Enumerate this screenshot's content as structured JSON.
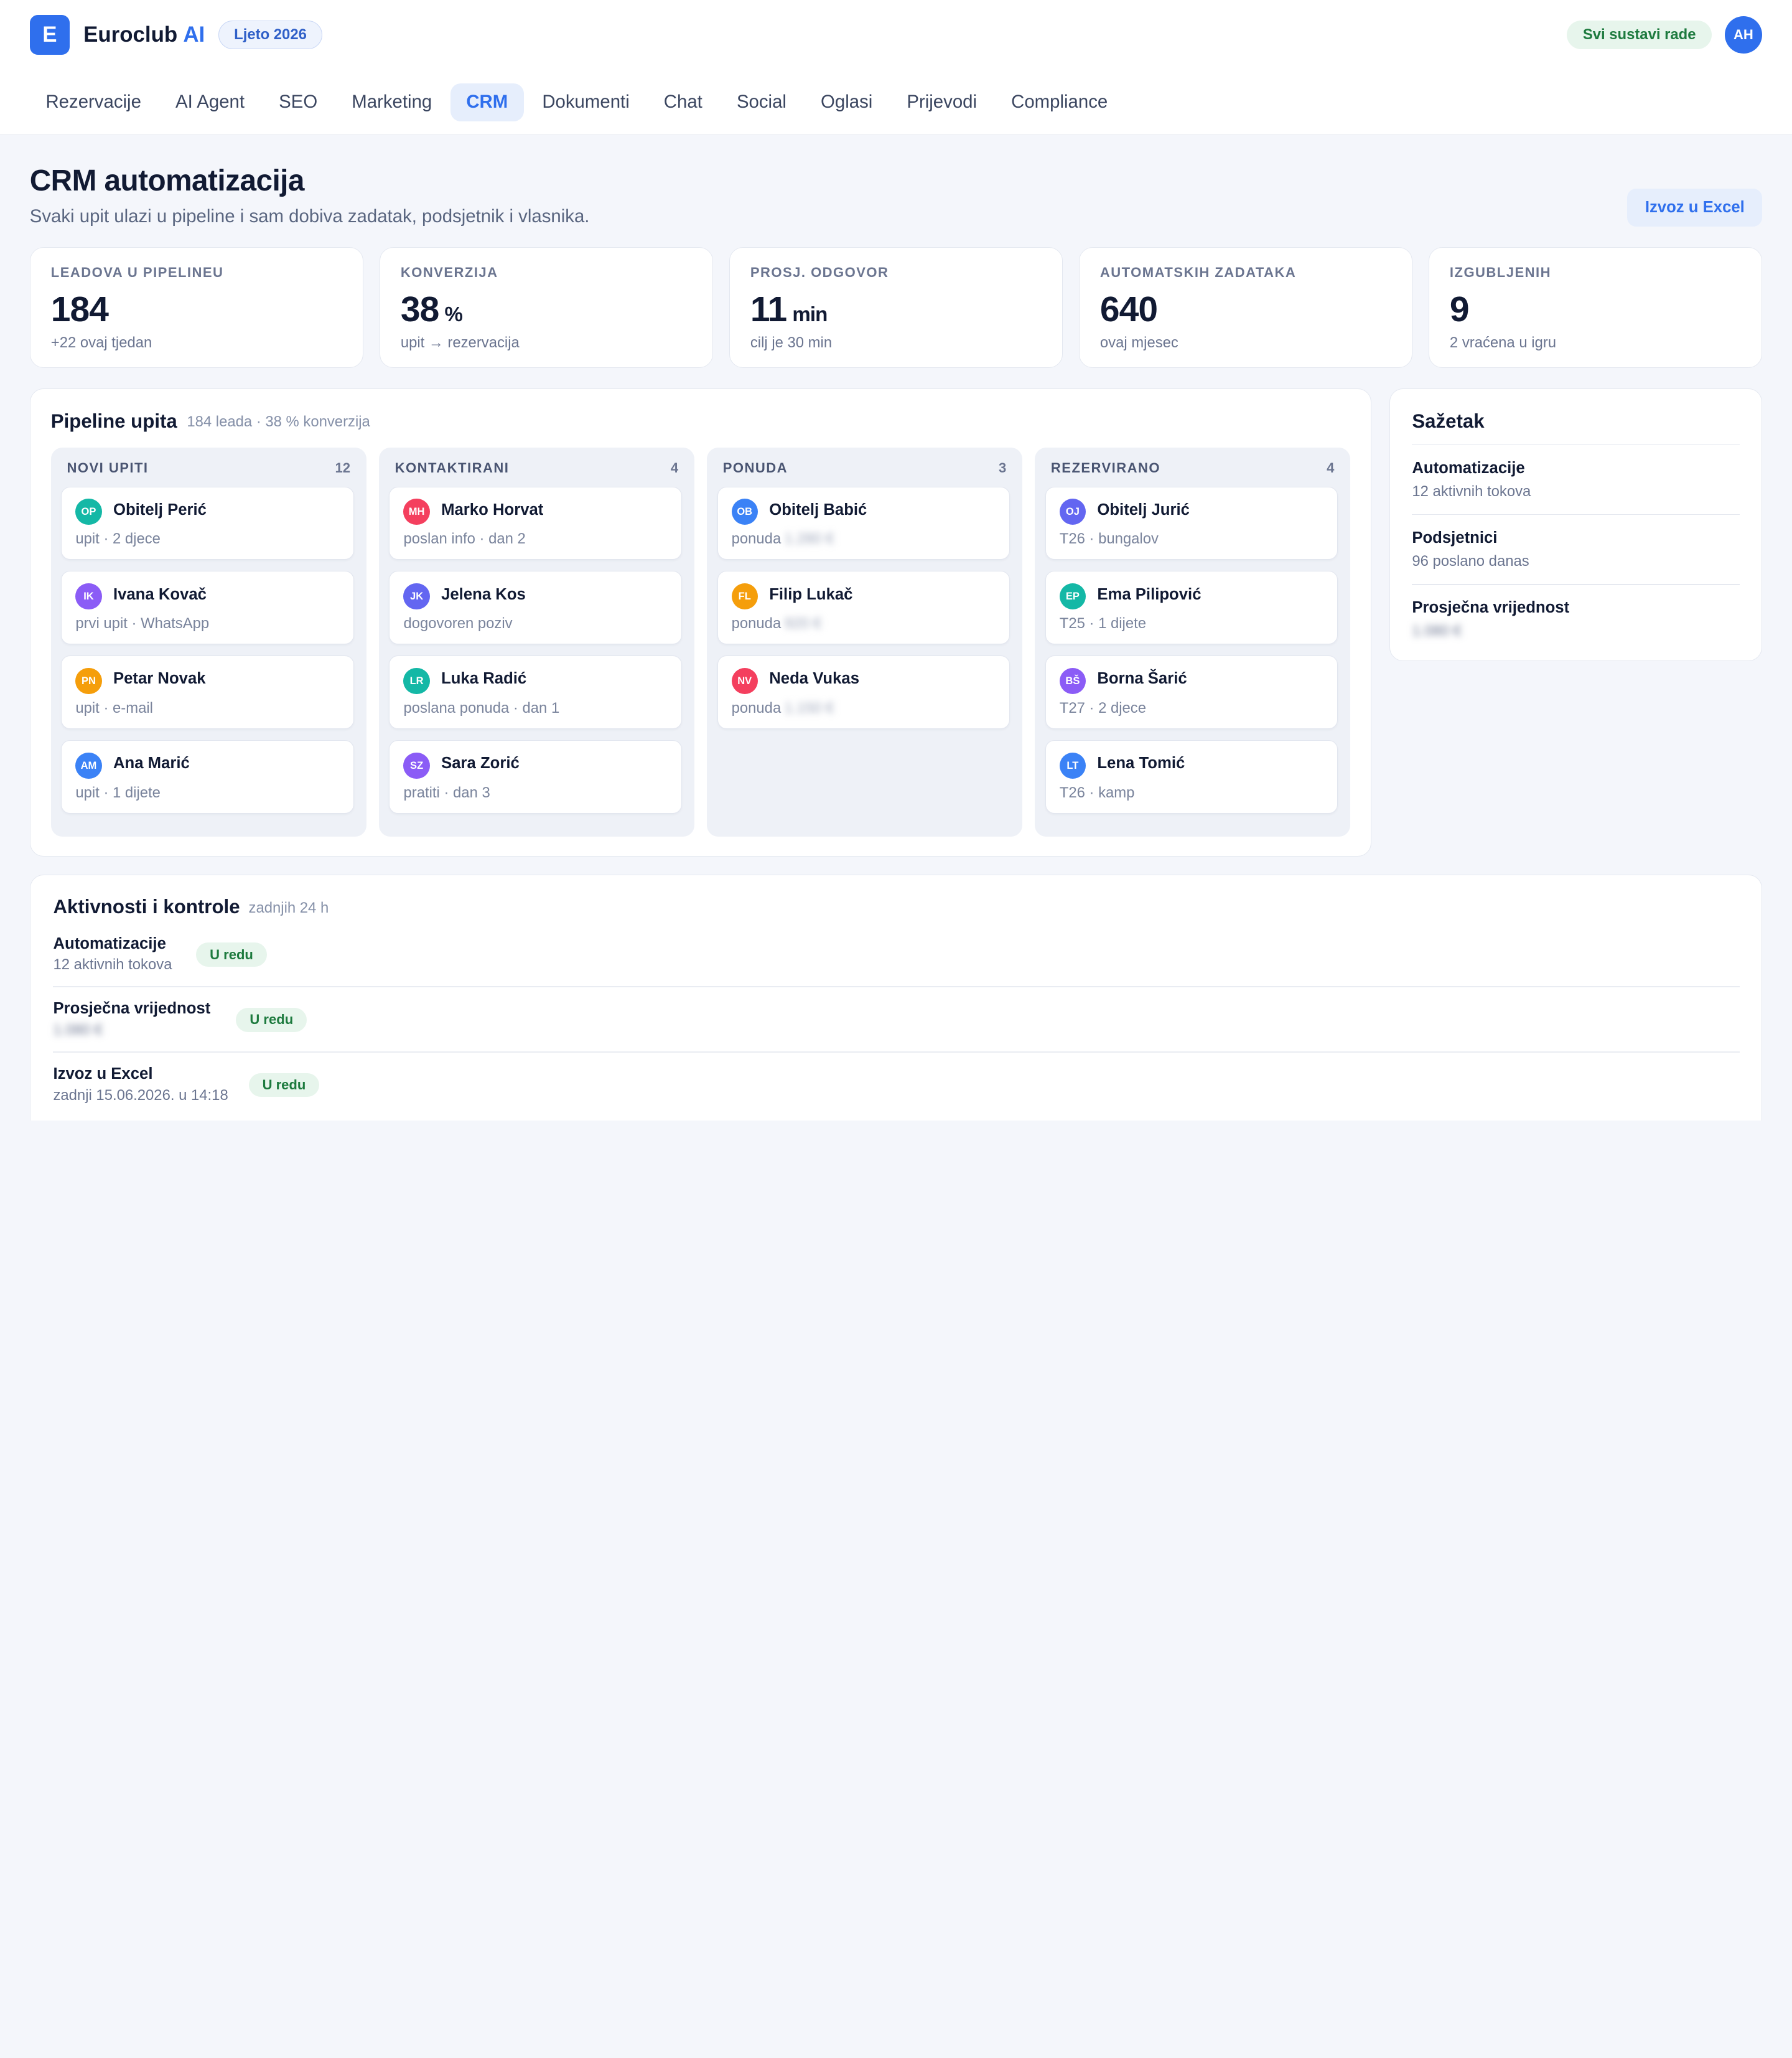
{
  "header": {
    "logo_letter": "E",
    "brand_name": "Euroclub",
    "brand_accent": "AI",
    "season": "Ljeto 2026",
    "status": "Svi sustavi rade",
    "user_initials": "AH"
  },
  "nav": {
    "tabs": [
      "Rezervacije",
      "AI Agent",
      "SEO",
      "Marketing",
      "CRM",
      "Dokumenti",
      "Chat",
      "Social",
      "Oglasi",
      "Prijevodi",
      "Compliance"
    ],
    "active": "CRM"
  },
  "page": {
    "title": "CRM automatizacija",
    "subtitle": "Svaki upit ulazi u pipeline i sam dobiva zadatak, podsjetnik i vlasnika.",
    "export_label": "Izvoz u Excel"
  },
  "stats": [
    {
      "label": "LEADOVA U PIPELINEU",
      "value": "184",
      "unit": "",
      "note": "+22 ovaj tjedan"
    },
    {
      "label": "KONVERZIJA",
      "value": "38",
      "unit": "%",
      "note": "upit → rezervacija"
    },
    {
      "label": "PROSJ. ODGOVOR",
      "value": "11",
      "unit": "min",
      "note": "cilj je 30 min"
    },
    {
      "label": "AUTOMATSKIH ZADATAKA",
      "value": "640",
      "unit": "",
      "note": "ovaj mjesec"
    },
    {
      "label": "IZGUBLJENIH",
      "value": "9",
      "unit": "",
      "note": "2 vraćena u igru"
    }
  ],
  "pipeline": {
    "title": "Pipeline upita",
    "meta": "184 leada · 38 % konverzija",
    "columns": [
      {
        "name": "NOVI UPITI",
        "count": "12",
        "cards": [
          {
            "initials": "OP",
            "name": "Obitelj Perić",
            "sub": "upit · 2 djece",
            "hidden": ""
          },
          {
            "initials": "IK",
            "name": "Ivana Kovač",
            "sub": "prvi upit · WhatsApp",
            "hidden": ""
          },
          {
            "initials": "PN",
            "name": "Petar Novak",
            "sub": "upit · e-mail",
            "hidden": ""
          },
          {
            "initials": "AM",
            "name": "Ana Marić",
            "sub": "upit · 1 dijete",
            "hidden": ""
          }
        ]
      },
      {
        "name": "KONTAKTIRANI",
        "count": "4",
        "cards": [
          {
            "initials": "MH",
            "name": "Marko Horvat",
            "sub": "poslan info · dan 2",
            "hidden": ""
          },
          {
            "initials": "JK",
            "name": "Jelena Kos",
            "sub": "dogovoren poziv",
            "hidden": ""
          },
          {
            "initials": "LR",
            "name": "Luka Radić",
            "sub": "poslana ponuda · dan 1",
            "hidden": ""
          },
          {
            "initials": "SZ",
            "name": "Sara Zorić",
            "sub": "pratiti · dan 3",
            "hidden": ""
          }
        ]
      },
      {
        "name": "PONUDA",
        "count": "3",
        "cards": [
          {
            "initials": "OB",
            "name": "Obitelj Babić",
            "sub": "ponuda",
            "hidden": "1.280 €"
          },
          {
            "initials": "FL",
            "name": "Filip Lukač",
            "sub": "ponuda",
            "hidden": "920 €"
          },
          {
            "initials": "NV",
            "name": "Neda Vukas",
            "sub": "ponuda",
            "hidden": "1.150 €"
          }
        ]
      },
      {
        "name": "REZERVIRANO",
        "count": "4",
        "cards": [
          {
            "initials": "OJ",
            "name": "Obitelj Jurić",
            "sub": "T26 · bungalov",
            "hidden": ""
          },
          {
            "initials": "EP",
            "name": "Ema Pilipović",
            "sub": "T25 · 1 dijete",
            "hidden": ""
          },
          {
            "initials": "BŠ",
            "name": "Borna Šarić",
            "sub": "T27 · 2 djece",
            "hidden": ""
          },
          {
            "initials": "LT",
            "name": "Lena Tomić",
            "sub": "T26 · kamp",
            "hidden": ""
          }
        ]
      }
    ]
  },
  "summary": {
    "title": "Sažetak",
    "items": [
      {
        "title": "Automatizacije",
        "sub": "12 aktivnih tokova",
        "hidden": false
      },
      {
        "title": "Podsjetnici",
        "sub": "96 poslano danas",
        "hidden": false
      },
      {
        "title": "Prosječna vrijednost",
        "sub": "1.080 €",
        "hidden": true
      }
    ]
  },
  "activity": {
    "title": "Aktivnosti i kontrole",
    "meta": "zadnjih 24 h",
    "rows": [
      {
        "title": "Automatizacije",
        "sub": "12 aktivnih tokova",
        "badge": "U redu",
        "hidden": false
      },
      {
        "title": "Prosječna vrijednost",
        "sub": "1.080 €",
        "badge": "U redu",
        "hidden": true
      },
      {
        "title": "Izvoz u Excel",
        "sub": "zadnji 15.06.2026. u 14:18",
        "badge": "U redu",
        "hidden": false
      }
    ]
  },
  "colors": {
    "accent": "#2f6fed",
    "success_bg": "#e7f5ec",
    "success_text": "#1d7a3e",
    "avatar_colors": [
      "#14b8a6",
      "#8b5cf6",
      "#f59e0b",
      "#3b82f6",
      "#f43f5e",
      "#6366f1",
      "#14b8a6",
      "#8b5cf6",
      "#3b82f6",
      "#f59e0b",
      "#f43f5e",
      "#6366f1",
      "#14b8a6",
      "#8b5cf6",
      "#3b82f6"
    ]
  }
}
